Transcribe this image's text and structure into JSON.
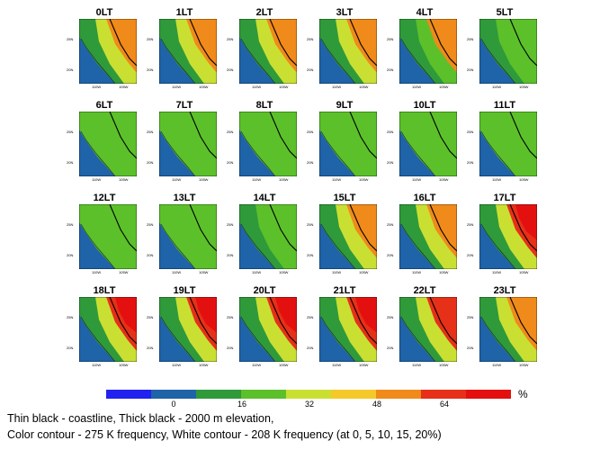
{
  "chart_data": {
    "type": "heatmap",
    "panels": [
      "0LT",
      "1LT",
      "2LT",
      "3LT",
      "4LT",
      "5LT",
      "6LT",
      "7LT",
      "8LT",
      "9LT",
      "10LT",
      "11LT",
      "12LT",
      "13LT",
      "14LT",
      "15LT",
      "16LT",
      "17LT",
      "18LT",
      "19LT",
      "20LT",
      "21LT",
      "22LT",
      "23LT"
    ],
    "colorbar": {
      "ticks": [
        "0",
        "16",
        "32",
        "48",
        "64"
      ],
      "unit": "%",
      "colors": [
        "#2222ee",
        "#1f63a8",
        "#2f9a3a",
        "#5cc02a",
        "#c9e033",
        "#f5c92a",
        "#f08a1a",
        "#e63018",
        "#e41010"
      ]
    },
    "axis_ticks": {
      "lat": [
        "25N",
        "20N"
      ],
      "lon": [
        "110W",
        "105W"
      ]
    },
    "caption": [
      "Thin black - coastline, Thick black - 2000 m elevation,",
      "Color contour - 275 K frequency, White contour - 208 K frequency (at 0, 5, 10, 15, 20%)"
    ]
  }
}
